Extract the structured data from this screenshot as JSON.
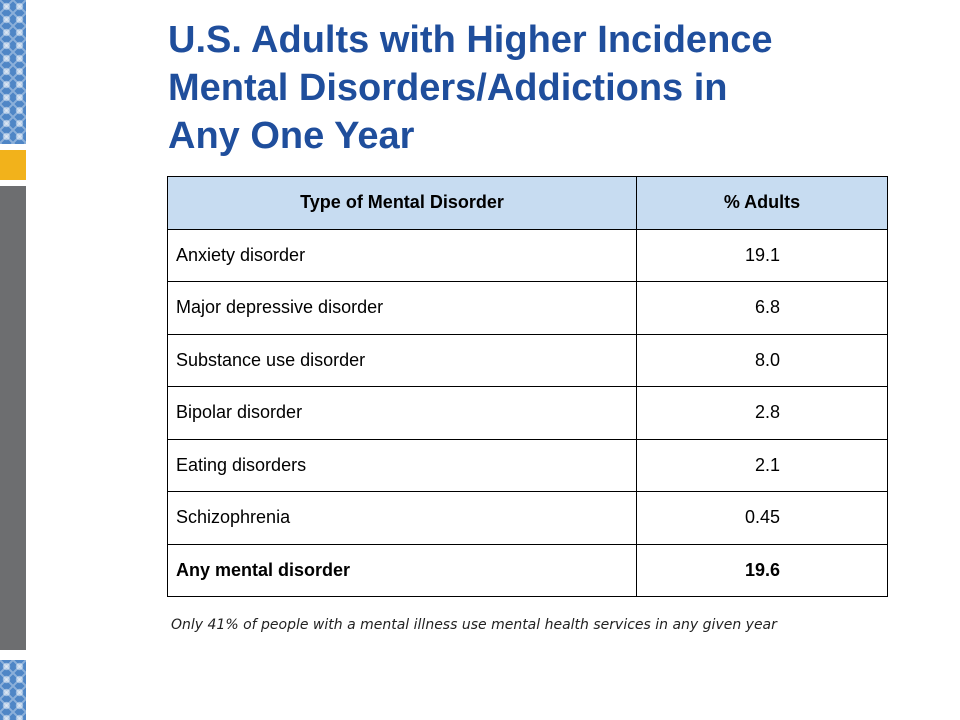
{
  "title": {
    "line1": "U.S. Adults with Higher Incidence",
    "line2": "Mental Disorders/Addictions in",
    "line3": "Any One Year"
  },
  "table": {
    "headers": [
      "Type of Mental Disorder",
      "% Adults"
    ],
    "rows": [
      {
        "name": "Anxiety disorder",
        "value": "19.1"
      },
      {
        "name": "Major depressive disorder",
        "value": "6.8"
      },
      {
        "name": "Substance use disorder",
        "value": "8.0"
      },
      {
        "name": "Bipolar disorder",
        "value": "2.8"
      },
      {
        "name": "Eating disorders",
        "value": "2.1"
      },
      {
        "name": "Schizophrenia",
        "value": "0.45"
      },
      {
        "name": "Any mental disorder",
        "value": "19.6"
      }
    ]
  },
  "footnote": "Only 41% of people with a mental illness use mental health services in any given year",
  "colors": {
    "title": "#1f4e9c",
    "header_fill": "#c7dcf1",
    "band_blue": "#4f86c6",
    "band_gold": "#f2b21b",
    "band_gray": "#6d6e70"
  }
}
